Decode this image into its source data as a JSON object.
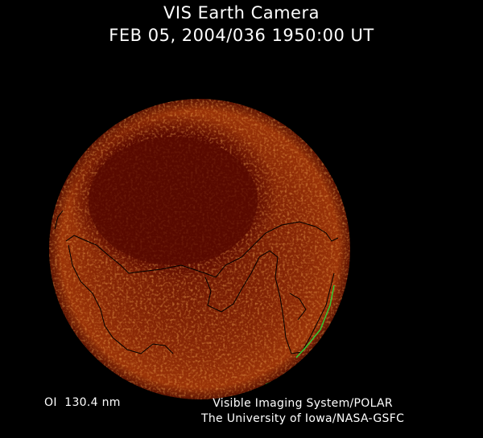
{
  "header": {
    "title": "VIS Earth Camera",
    "timestamp": "FEB 05, 2004/036 1950:00 UT"
  },
  "footer": {
    "band": "OI  130.4 nm",
    "credit_line1": "Visible Imaging System/POLAR",
    "credit_line2": "The University of Iowa/NASA-GSFC"
  },
  "colors": {
    "background": "#000000",
    "earth_disk": "#7a1e04",
    "aurora_glow": "#e0661a",
    "polar_cap": "#5a0a00",
    "coastline": "#000000",
    "terminator_line": "#33cc33"
  }
}
